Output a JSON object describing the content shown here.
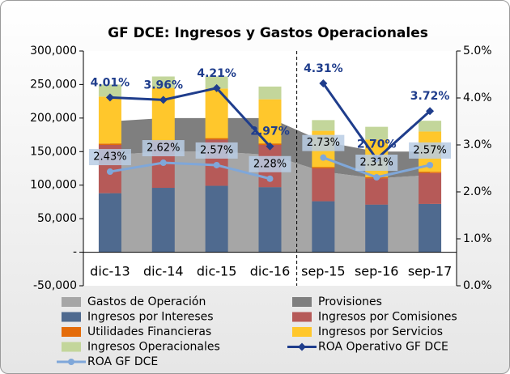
{
  "chart_data": {
    "type": "combo",
    "title": "GF DCE: Ingresos y Gastos Operacionales",
    "categories": [
      "dic-13",
      "dic-14",
      "dic-15",
      "dic-16",
      "sep-15",
      "sep-16",
      "sep-17"
    ],
    "ylim": [
      -50000,
      300000
    ],
    "yticks": [
      {
        "value": -50000,
        "label": "-50,000"
      },
      {
        "value": 0,
        "label": "-"
      },
      {
        "value": 50000,
        "label": "50,000"
      },
      {
        "value": 100000,
        "label": "100,000"
      },
      {
        "value": 150000,
        "label": "150,000"
      },
      {
        "value": 200000,
        "label": "200,000"
      },
      {
        "value": 250000,
        "label": "250,000"
      },
      {
        "value": 300000,
        "label": "300,000"
      }
    ],
    "y2lim": [
      0,
      5
    ],
    "y2ticks": [
      {
        "value": 0,
        "label": "0.0%"
      },
      {
        "value": 1,
        "label": "1.0%"
      },
      {
        "value": 2,
        "label": "2.0%"
      },
      {
        "value": 3,
        "label": "3.0%"
      },
      {
        "value": 4,
        "label": "4.0%"
      },
      {
        "value": 5,
        "label": "5.0%"
      }
    ],
    "series": [
      {
        "name": "Gastos de Operación",
        "kind": "area",
        "color": "#a6a6a6",
        "values": [
          145000,
          150000,
          150000,
          145000,
          120000,
          110000,
          115000
        ]
      },
      {
        "name": "Provisiones",
        "kind": "area",
        "color": "#7f7f7f",
        "values": [
          50000,
          50000,
          50000,
          55000,
          45000,
          40000,
          35000
        ]
      },
      {
        "name": "Ingresos por Intereses",
        "kind": "bar",
        "color": "#4f6a8f",
        "values": [
          88000,
          96000,
          99000,
          97000,
          76000,
          71000,
          72000
        ]
      },
      {
        "name": "Ingresos por Comisiones",
        "kind": "bar",
        "color": "#b65a58",
        "values": [
          72000,
          69000,
          69000,
          63000,
          49000,
          39000,
          46000
        ]
      },
      {
        "name": "Utilidades Financieras",
        "kind": "bar",
        "color": "#e46c0a",
        "values": [
          2000,
          2000,
          2000,
          2000,
          2000,
          2000,
          2000
        ]
      },
      {
        "name": "Ingresos por Servicios",
        "kind": "bar",
        "color": "#ffc72c",
        "values": [
          70000,
          78000,
          74000,
          66000,
          54000,
          56000,
          60000
        ]
      },
      {
        "name": "Ingresos Operacionales",
        "kind": "bar",
        "color": "#c3d69b",
        "values": [
          18000,
          17000,
          18000,
          19000,
          16000,
          19000,
          16000
        ]
      },
      {
        "name": "ROA Operativo GF DCE",
        "kind": "line",
        "axis": "y2",
        "color": "#1f3d8c",
        "values": [
          4.01,
          3.96,
          4.21,
          2.97,
          4.31,
          2.7,
          3.72
        ],
        "value_labels": [
          "4.01%",
          "3.96%",
          "4.21%",
          "2.97%",
          "4.31%",
          "2.70%",
          "3.72%"
        ]
      },
      {
        "name": "ROA GF DCE",
        "kind": "line",
        "axis": "y2",
        "color": "#7fa7d9",
        "values": [
          2.43,
          2.62,
          2.57,
          2.28,
          2.73,
          2.31,
          2.57
        ],
        "value_labels": [
          "2.43%",
          "2.62%",
          "2.57%",
          "2.28%",
          "2.73%",
          "2.31%",
          "2.57%"
        ]
      }
    ]
  }
}
